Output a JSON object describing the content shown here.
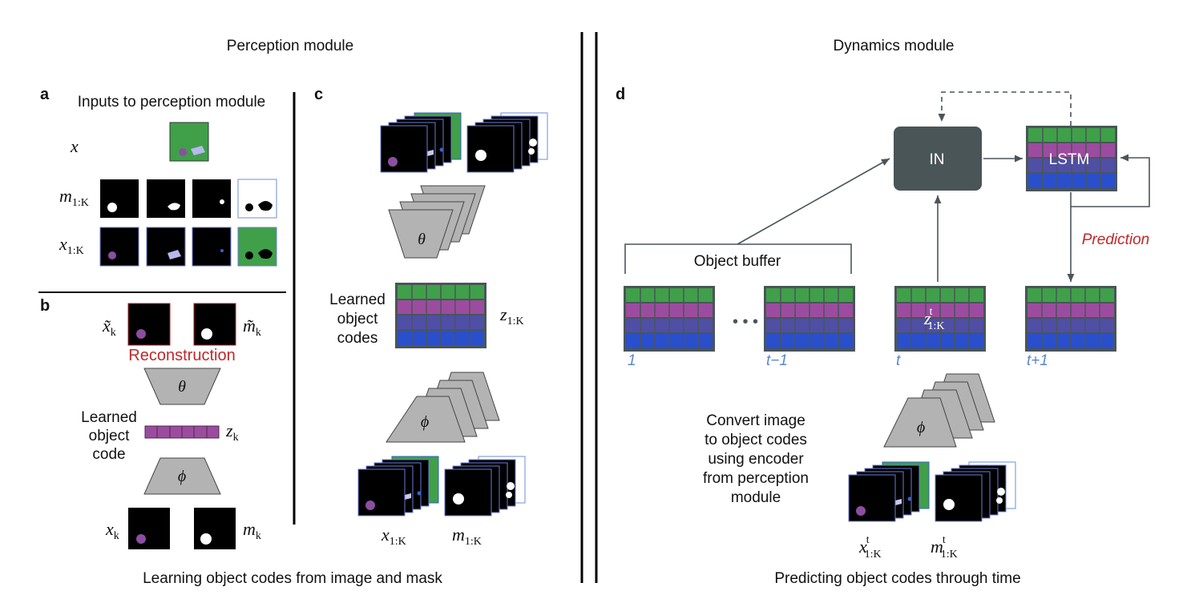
{
  "titles": {
    "perception": "Perception module",
    "dynamics": "Dynamics module",
    "perception_caption": "Learning object codes from image and mask",
    "dynamics_caption": "Predicting object codes through time"
  },
  "panel_a": {
    "letter": "a",
    "title": "Inputs to perception module",
    "row_x": "x",
    "row_m": "m",
    "row_m_sub": "1:K",
    "row_x1k": "x",
    "row_x1k_sub": "1:K"
  },
  "panel_b": {
    "letter": "b",
    "x_tilde": "x̃",
    "x_tilde_sub": "k",
    "m_tilde": "m̃",
    "m_tilde_sub": "k",
    "reconstruction": "Reconstruction",
    "theta": "θ",
    "phi": "ϕ",
    "learned_1": "Learned",
    "learned_2": "object",
    "learned_3": "code",
    "z": "z",
    "z_sub": "k",
    "x": "x",
    "x_sub": "k",
    "m": "m",
    "m_sub": "k"
  },
  "panel_c": {
    "letter": "c",
    "theta": "θ",
    "phi": "ϕ",
    "learned_1": "Learned",
    "learned_2": "object",
    "learned_3": "codes",
    "z": "z",
    "z_sub": "1:K",
    "x": "x",
    "x_sub": "1:K",
    "m": "m",
    "m_sub": "1:K"
  },
  "panel_d": {
    "letter": "d",
    "in_label": "IN",
    "lstm_label": "LSTM",
    "prediction": "Prediction",
    "object_buffer": "Object buffer",
    "dots": "• • •",
    "t1": "1",
    "tminus1": "t−1",
    "t": "t",
    "tplus1": "t+1",
    "z_center": "z",
    "z_center_sup": "t",
    "z_center_sub": "1:K",
    "convert_1": "Convert image",
    "convert_2": "to object codes",
    "convert_3": "using encoder",
    "convert_4": "from perception",
    "convert_5": "module",
    "phi": "ϕ",
    "x": "x",
    "x_sup": "t",
    "x_sub": "1:K",
    "m": "m",
    "m_sup": "t",
    "m_sub": "1:K"
  },
  "colors": {
    "green": "#3fa049",
    "magenta": "#9c4c9f",
    "indigo": "#4f4fa6",
    "blue": "#2a4fcc",
    "red_text": "#c0282a",
    "box_gray": "#4a5558",
    "time_blue": "#5b86d6",
    "trapezoid": "#b3b3b3"
  }
}
